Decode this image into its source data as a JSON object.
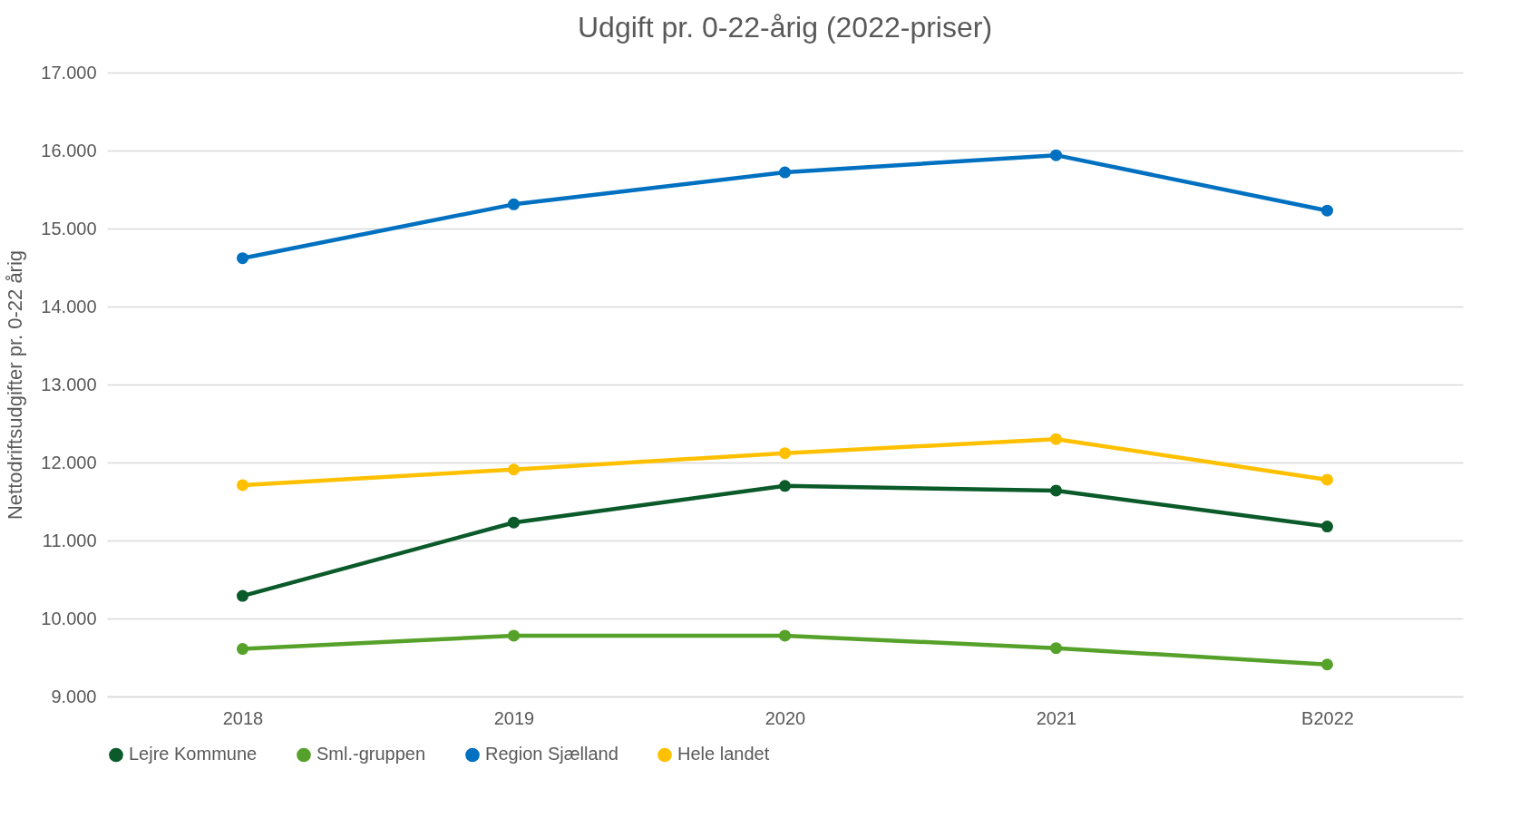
{
  "chart_data": {
    "type": "line",
    "title": "Udgift pr. 0-22-årig (2022-priser)",
    "ylabel": "Nettodriftsudgifter pr. 0-22 årig",
    "categories": [
      "2018",
      "2019",
      "2020",
      "2021",
      "B2022"
    ],
    "series": [
      {
        "name": "Lejre Kommune",
        "color": "#0b5a2a",
        "values": [
          10290,
          11230,
          11700,
          11640,
          11180
        ]
      },
      {
        "name": "Sml.-gruppen",
        "color": "#56a12a",
        "values": [
          9610,
          9780,
          9780,
          9620,
          9410
        ]
      },
      {
        "name": "Region Sjælland",
        "color": "#0070c0",
        "values": [
          14620,
          15310,
          15720,
          15940,
          15230
        ]
      },
      {
        "name": "Hele landet",
        "color": "#ffc000",
        "values": [
          11710,
          11910,
          12120,
          12300,
          11780
        ]
      }
    ],
    "ylim": [
      9000,
      17000
    ],
    "yticks": [
      {
        "value": 9000,
        "label": "9.000"
      },
      {
        "value": 10000,
        "label": "10.000"
      },
      {
        "value": 11000,
        "label": "11.000"
      },
      {
        "value": 12000,
        "label": "12.000"
      },
      {
        "value": 13000,
        "label": "13.000"
      },
      {
        "value": 14000,
        "label": "14.000"
      },
      {
        "value": 15000,
        "label": "15.000"
      },
      {
        "value": 16000,
        "label": "16.000"
      },
      {
        "value": 17000,
        "label": "17.000"
      }
    ],
    "grid": "y",
    "legend": "bottom",
    "marker": "circle",
    "line_style": "solid"
  }
}
